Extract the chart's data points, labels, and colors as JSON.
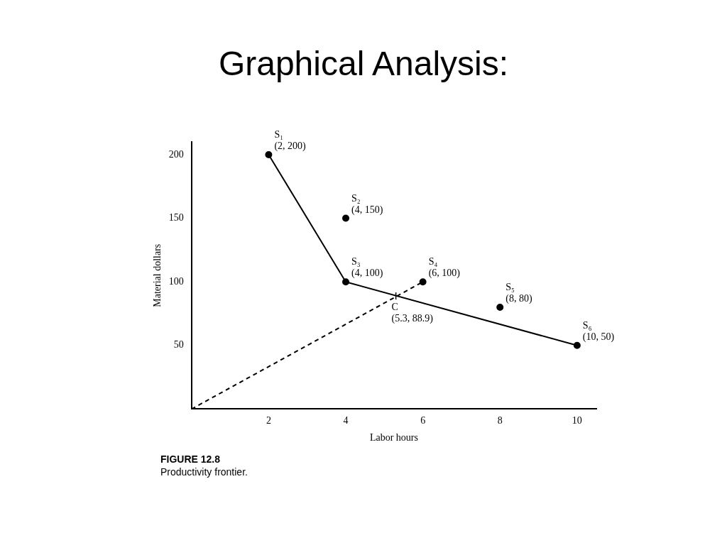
{
  "chart_data": {
    "type": "scatter",
    "title": "Graphical Analysis:",
    "xlabel": "Labor hours",
    "ylabel": "Material dollars",
    "xlim": [
      0,
      10.5
    ],
    "ylim": [
      0,
      210
    ],
    "xticks": [
      2,
      4,
      6,
      8,
      10
    ],
    "yticks": [
      50,
      100,
      150,
      200
    ],
    "grid": false,
    "legend": false,
    "series": [
      {
        "type": "line",
        "color": "#000000",
        "x": [
          2,
          4,
          10
        ],
        "values": [
          200,
          100,
          50
        ],
        "marker": "none",
        "line_style": "solid"
      },
      {
        "type": "line",
        "color": "#000000",
        "x": [
          0,
          6
        ],
        "values": [
          0,
          100
        ],
        "marker": "none",
        "line_style": "dashed"
      },
      {
        "type": "scatter",
        "color": "#000000",
        "x": [
          2,
          4,
          4,
          6,
          8,
          10
        ],
        "values": [
          200,
          150,
          100,
          100,
          80,
          50
        ],
        "marker": "circle"
      }
    ],
    "annotations": [
      {
        "text": "S₁\n(2, 200)",
        "x": 2,
        "y": 200
      },
      {
        "text": "S₂\n(4, 150)",
        "x": 4,
        "y": 150
      },
      {
        "text": "S₃\n(4, 100)",
        "x": 4,
        "y": 100
      },
      {
        "text": "S₄\n(6, 100)",
        "x": 6,
        "y": 100
      },
      {
        "text": "S₅\n(8, 80)",
        "x": 8,
        "y": 80
      },
      {
        "text": "S₆\n(10, 50)",
        "x": 10,
        "y": 50
      },
      {
        "text": "C\n(5.3, 88.9)",
        "x": 5.3,
        "y": 88.9
      },
      "FIGURE 12.8",
      "Productivity frontier."
    ]
  }
}
